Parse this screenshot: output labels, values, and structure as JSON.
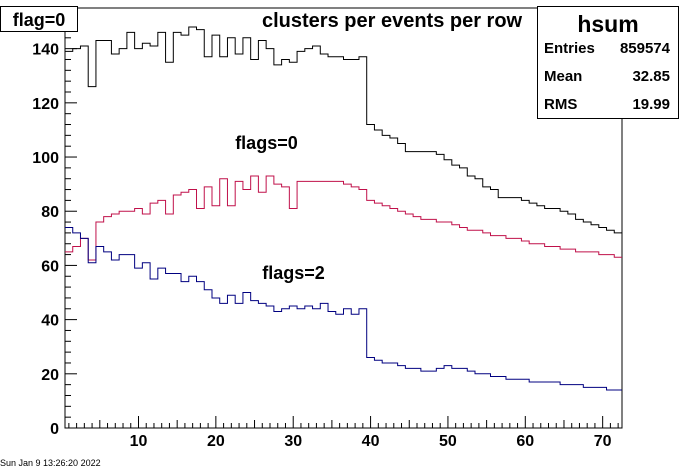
{
  "header": {
    "corner_label": "flag=0",
    "title": "clusters per events per row",
    "timestamp": "Sun Jan  9 13:26:20 2022"
  },
  "stats_box": {
    "name": "hsum",
    "rows": [
      {
        "label": "Entries",
        "value": "859574"
      },
      {
        "label": "Mean",
        "value": "32.85"
      },
      {
        "label": "RMS",
        "value": "19.99"
      }
    ]
  },
  "chart_data": {
    "type": "line",
    "xlim": [
      0.5,
      72.5
    ],
    "ylim": [
      0,
      155
    ],
    "x_ticks": [
      10,
      20,
      30,
      40,
      50,
      60,
      70
    ],
    "y_ticks": [
      0,
      20,
      40,
      60,
      80,
      100,
      120,
      140
    ],
    "grid": false,
    "x": [
      1,
      2,
      3,
      4,
      5,
      6,
      7,
      8,
      9,
      10,
      11,
      12,
      13,
      14,
      15,
      16,
      17,
      18,
      19,
      20,
      21,
      22,
      23,
      24,
      25,
      26,
      27,
      28,
      29,
      30,
      31,
      32,
      33,
      34,
      35,
      36,
      37,
      38,
      39,
      40,
      41,
      42,
      43,
      44,
      45,
      46,
      47,
      48,
      49,
      50,
      51,
      52,
      53,
      54,
      55,
      56,
      57,
      58,
      59,
      60,
      61,
      62,
      63,
      64,
      65,
      66,
      67,
      68,
      69,
      70,
      71,
      72
    ],
    "series": [
      {
        "color": "#000000",
        "values": [
          139,
          140,
          141,
          126,
          143,
          143,
          138,
          140,
          146,
          140,
          142,
          141,
          146,
          135,
          146,
          145,
          148,
          147,
          137,
          145,
          137,
          144,
          138,
          144,
          136,
          143,
          140,
          134,
          136,
          135,
          139,
          140,
          141,
          138,
          137,
          137,
          136,
          136,
          137,
          112,
          110,
          108,
          107,
          105,
          102,
          102,
          102,
          102,
          101,
          99,
          97,
          96,
          93,
          92,
          89,
          88,
          85,
          85,
          85,
          84,
          83,
          82,
          81,
          81,
          80,
          79,
          77,
          76,
          75,
          74,
          73,
          72
        ]
      },
      {
        "name": "flags=0",
        "color": "#c0104a",
        "values": [
          65,
          67,
          70,
          62,
          76,
          78,
          79,
          80,
          80,
          81,
          79,
          83,
          84,
          79,
          86,
          87,
          88,
          81,
          89,
          82,
          92,
          82,
          91,
          88,
          93,
          87,
          93,
          90,
          89,
          81,
          91,
          91,
          91,
          91,
          91,
          91,
          90,
          89,
          88,
          84,
          83,
          82,
          81,
          80,
          79,
          78,
          77,
          77,
          76,
          76,
          75,
          74,
          73,
          73,
          72,
          71,
          71,
          70,
          70,
          69,
          68,
          68,
          67,
          67,
          66,
          66,
          65,
          65,
          65,
          64,
          64,
          63
        ]
      },
      {
        "name": "flags=2",
        "color": "#000080",
        "values": [
          74,
          72,
          70,
          61,
          67,
          65,
          62,
          64,
          64,
          59,
          61,
          55,
          59,
          57,
          57,
          54,
          56,
          54,
          51,
          48,
          46,
          49,
          46,
          50,
          47,
          46,
          45,
          43,
          44,
          45,
          44,
          45,
          44,
          46,
          43,
          42,
          44,
          42,
          44,
          26,
          25,
          24,
          24,
          23,
          22,
          22,
          21,
          21,
          22,
          23,
          22,
          22,
          21,
          20,
          20,
          19,
          19,
          18,
          18,
          18,
          17,
          17,
          17,
          17,
          16,
          16,
          16,
          15,
          15,
          15,
          14,
          14
        ]
      }
    ]
  }
}
